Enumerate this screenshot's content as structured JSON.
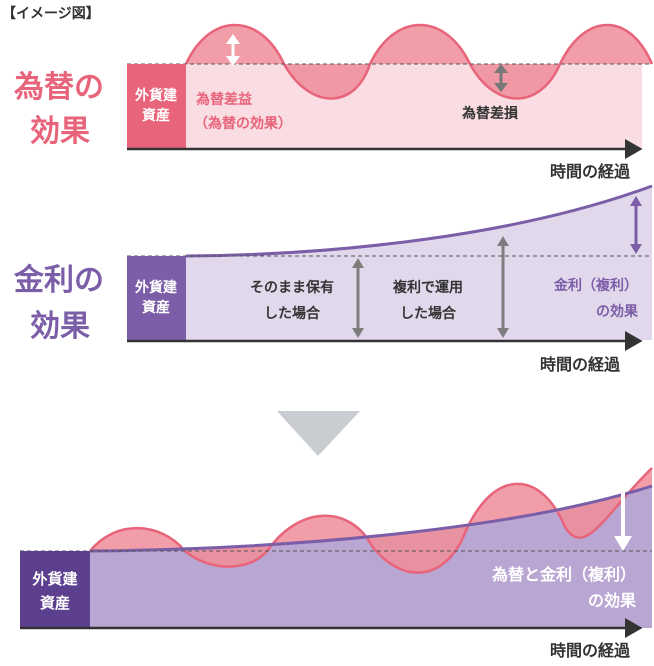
{
  "header": {
    "label": "【イメージ図】"
  },
  "fx_section": {
    "title_line1": "為替の",
    "title_line2": "効果",
    "asset_line1": "外貨建",
    "asset_line2": "資産",
    "gain_line1": "為替差益",
    "gain_line2": "（為替の効果）",
    "loss_label": "為替差損",
    "axis_label": "時間の経過"
  },
  "interest_section": {
    "title_line1": "金利の",
    "title_line2": "効果",
    "asset_line1": "外貨建",
    "asset_line2": "資産",
    "hold_line1": "そのまま保有",
    "hold_line2": "した場合",
    "compound_line1": "複利で運用",
    "compound_line2": "した場合",
    "effect_line1": "金利（複利）",
    "effect_line2": "の効果",
    "axis_label": "時間の経過"
  },
  "combined_section": {
    "asset_line1": "外貨建",
    "asset_line2": "資産",
    "effect_line1": "為替と金利（複利）",
    "effect_line2": "の効果",
    "axis_label": "時間の経過"
  },
  "colors": {
    "fx_red": "#e8647a",
    "fx_pink": "#f9dde2",
    "wave_fill": "#ef8d99",
    "purple": "#7b5ea7",
    "purple_light": "#e2d8ec",
    "purple_mid": "#b9a6d2",
    "arrow_gray": "#7d7d7d",
    "down_arrow": "#c9cdd2"
  }
}
